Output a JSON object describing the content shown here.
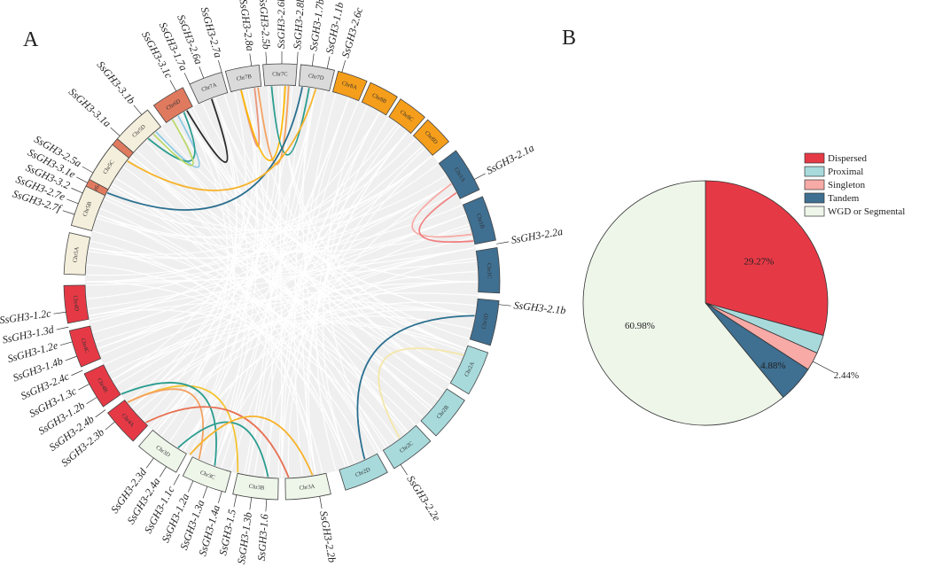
{
  "panels": {
    "a_label": "A",
    "b_label": "B"
  },
  "circos": {
    "chromosomes": [
      {
        "name": "Chr6A",
        "group": "chr6"
      },
      {
        "name": "Chr6B",
        "group": "chr6"
      },
      {
        "name": "Chr6C",
        "group": "chr6"
      },
      {
        "name": "Chr6D",
        "group": "chr6"
      },
      {
        "name": "Chr7A",
        "group": "chr7"
      },
      {
        "name": "Chr7B",
        "group": "chr7"
      },
      {
        "name": "Chr7C",
        "group": "chr7"
      },
      {
        "name": "Chr7D",
        "group": "chr7"
      },
      {
        "name": "Chr8A",
        "group": "chr8"
      },
      {
        "name": "Chr8B",
        "group": "chr8"
      },
      {
        "name": "Chr8C",
        "group": "chr8"
      },
      {
        "name": "Chr8D",
        "group": "chr8"
      },
      {
        "name": "Chr1A",
        "group": "chr1"
      },
      {
        "name": "Chr1B",
        "group": "chr1"
      },
      {
        "name": "Chr1C",
        "group": "chr1"
      },
      {
        "name": "Chr1D",
        "group": "chr1"
      },
      {
        "name": "Chr2A",
        "group": "chr2"
      },
      {
        "name": "Chr2B",
        "group": "chr2"
      },
      {
        "name": "Chr2C",
        "group": "chr2"
      },
      {
        "name": "Chr2D",
        "group": "chr2"
      },
      {
        "name": "Chr3A",
        "group": "chr3"
      },
      {
        "name": "Chr3B",
        "group": "chr3"
      },
      {
        "name": "Chr3C",
        "group": "chr3"
      },
      {
        "name": "Chr3D",
        "group": "chr3"
      },
      {
        "name": "Chr4A",
        "group": "chr4"
      },
      {
        "name": "Chr4B",
        "group": "chr4"
      },
      {
        "name": "Chr4C",
        "group": "chr4"
      },
      {
        "name": "Chr4D",
        "group": "chr4"
      },
      {
        "name": "Chr5A",
        "group": "chr5"
      },
      {
        "name": "Chr5B",
        "group": "chr5"
      },
      {
        "name": "Chr5C",
        "group": "chr5"
      },
      {
        "name": "Chr5D",
        "group": "chr5"
      }
    ],
    "group_colors": {
      "chr6": "#e07a5f",
      "chr7": "#dadada",
      "chr8": "#f59e1b",
      "chr1": "#3f6f91",
      "chr2": "#a8dadc",
      "chr3": "#eef6ea",
      "chr4": "#e63946",
      "chr5": "#f4efdc"
    },
    "genes": [
      "SsGH3-3.1a",
      "SsGH3-3.1b",
      "SsGH3-3.1c",
      "SsGH3-1.7a",
      "SsGH3-2.6a",
      "SsGH3-2.7a",
      "SsGH3-2.8a",
      "SsGH3-2.5b",
      "SsGH3-2.6b",
      "SsGH3-2.8b",
      "SsGH3-1.7b",
      "SsGH3-1.1b",
      "SsGH3-2.6c",
      "SsGH3-2.1a",
      "SsGH3-2.2a",
      "SsGH3-2.1b",
      "SsGH3-2.2e",
      "SsGH3-2.2b",
      "SsGH3-2.3d",
      "SsGH3-2.4a",
      "SsGH3-1.1c",
      "SsGH3-1.2a",
      "SsGH3-1.3a",
      "SsGH3-1.4a",
      "SsGH3-1.5",
      "SsGH3-1.3b",
      "SsGH3-1.6",
      "SsGH3-2.3b",
      "SsGH3-2.4b",
      "SsGH3-1.2b",
      "SsGH3-1.3c",
      "SsGH3-2.4c",
      "SsGH3-1.4b",
      "SsGH3-1.2e",
      "SsGH3-1.3d",
      "SsGH3-1.2c",
      "SsGH3-2.5a",
      "SsGH3-3.1e",
      "SsGH3-3.2",
      "SsGH3-2.7e",
      "SsGH3-2.7f"
    ]
  },
  "chart_data": {
    "type": "pie",
    "title": "",
    "legend_position": "top-right",
    "slices": [
      {
        "label": "Dispersed",
        "value": 29.27,
        "color": "#e63946",
        "display": "29.27%"
      },
      {
        "label": "Proximal",
        "value": 2.44,
        "color": "#a8dadc",
        "display": ""
      },
      {
        "label": "Singleton",
        "value": 2.44,
        "color": "#f7aaa6",
        "display": "2.44%"
      },
      {
        "label": "Tandem",
        "value": 4.88,
        "color": "#3f6f91",
        "display": "4.88%"
      },
      {
        "label": "WGD or Segmental",
        "value": 60.98,
        "color": "#eef6ea",
        "display": "60.98%"
      }
    ]
  }
}
